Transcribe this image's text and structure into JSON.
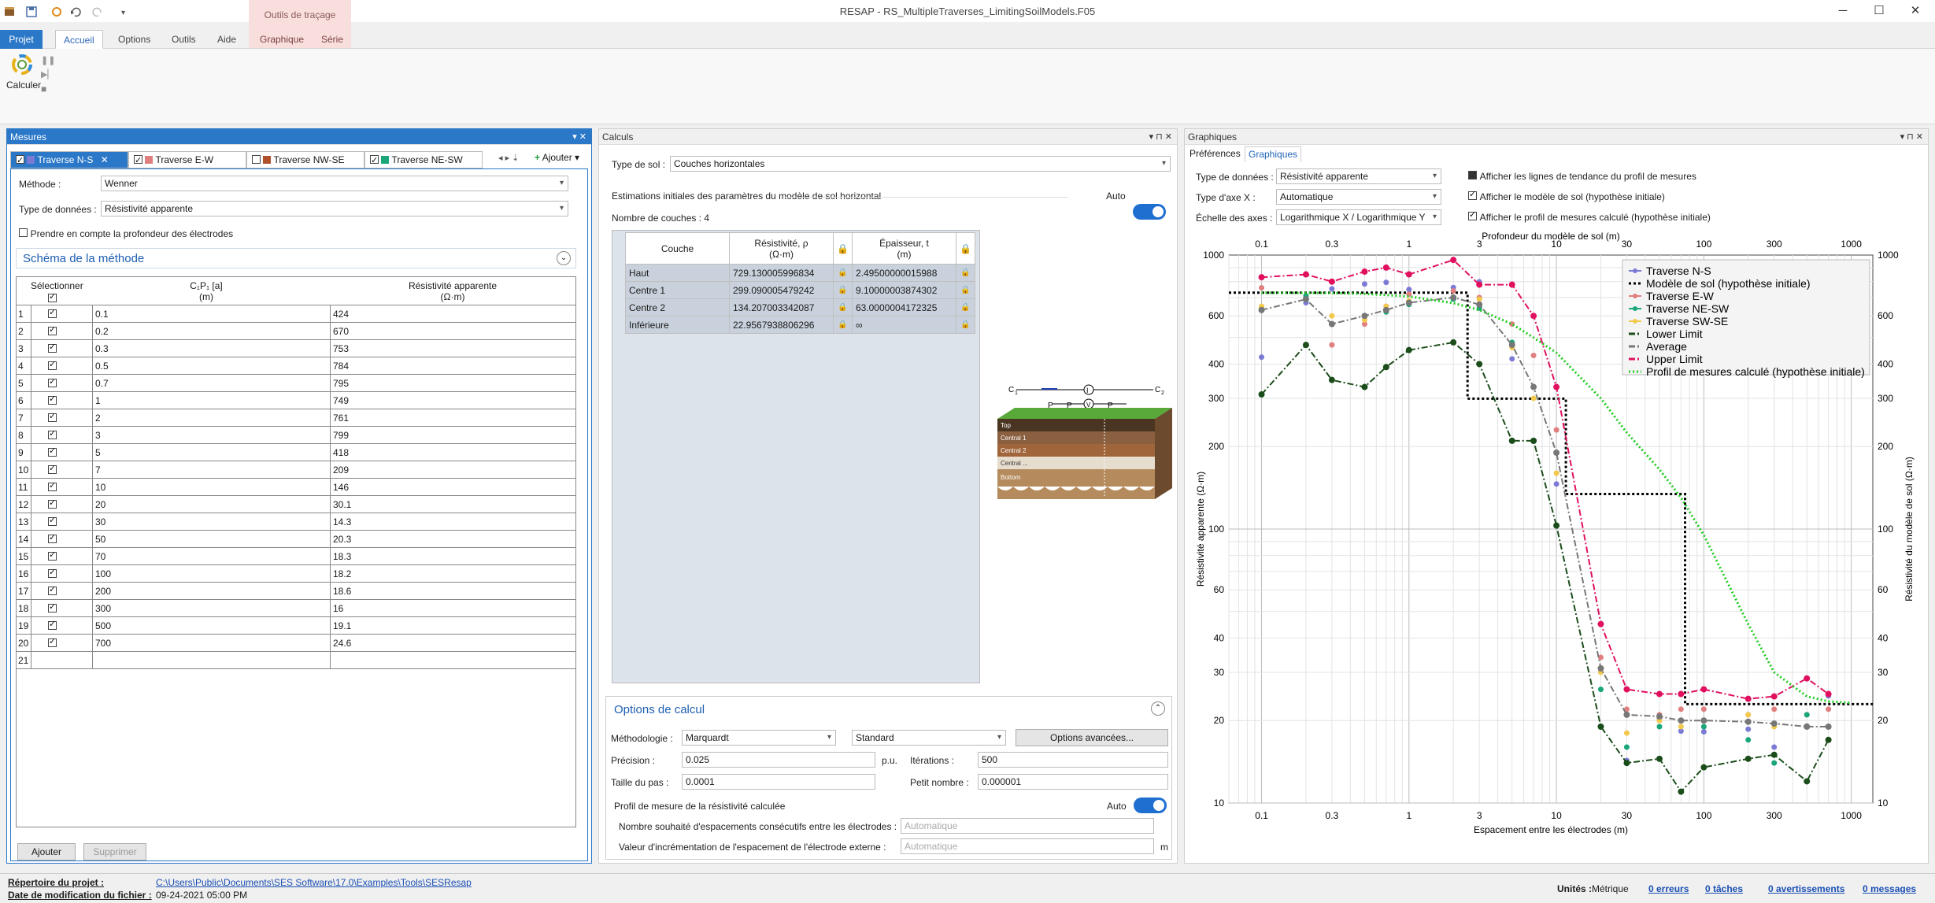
{
  "window": {
    "title": "RESAP - RS_MultipleTraverses_LimitingSoilModels.F05"
  },
  "ribbon": {
    "tabs": [
      "Projet",
      "Accueil",
      "Options",
      "Outils",
      "Aide",
      "Graphique",
      "Série"
    ],
    "context_group": "Outils de traçage",
    "calculer": "Calculer"
  },
  "mesures": {
    "title": "Mesures",
    "tabs": [
      {
        "label": "Traverse N-S",
        "checked": true,
        "color": "#7b7bd6"
      },
      {
        "label": "Traverse E-W",
        "checked": true,
        "color": "#e07f7f"
      },
      {
        "label": "Traverse NW-SE",
        "checked": false,
        "color": "#b0502b"
      },
      {
        "label": "Traverse NE-SW",
        "checked": true,
        "color": "#1aa67a"
      }
    ],
    "add_label": "Ajouter",
    "method_label": "Méthode :",
    "method_value": "Wenner",
    "datatype_label": "Type de données :",
    "datatype_value": "Résistivité apparente",
    "depth_label": "Prendre en compte la profondeur des électrodes",
    "schema_label": "Schéma de la méthode",
    "col_select": "Sélectionner",
    "col_c1p1": "C₁P₁ [a]",
    "col_c1p1_unit": "(m)",
    "col_res": "Résistivité apparente",
    "col_res_unit": "(Ω·m)",
    "rows": [
      [
        "1",
        "0.1",
        "424"
      ],
      [
        "2",
        "0.2",
        "670"
      ],
      [
        "3",
        "0.3",
        "753"
      ],
      [
        "4",
        "0.5",
        "784"
      ],
      [
        "5",
        "0.7",
        "795"
      ],
      [
        "6",
        "1",
        "749"
      ],
      [
        "7",
        "2",
        "761"
      ],
      [
        "8",
        "3",
        "799"
      ],
      [
        "9",
        "5",
        "418"
      ],
      [
        "10",
        "7",
        "209"
      ],
      [
        "11",
        "10",
        "146"
      ],
      [
        "12",
        "20",
        "30.1"
      ],
      [
        "13",
        "30",
        "14.3"
      ],
      [
        "14",
        "50",
        "20.3"
      ],
      [
        "15",
        "70",
        "18.3"
      ],
      [
        "16",
        "100",
        "18.2"
      ],
      [
        "17",
        "200",
        "18.6"
      ],
      [
        "18",
        "300",
        "16"
      ],
      [
        "19",
        "500",
        "19.1"
      ],
      [
        "20",
        "700",
        "24.6"
      ]
    ],
    "empty_row": "21",
    "btn_add": "Ajouter",
    "btn_del": "Supprimer"
  },
  "calculs": {
    "title": "Calculs",
    "soiltype_label": "Type de sol :",
    "soiltype_value": "Couches horizontales",
    "estim_label": "Estimations initiales des paramètres du modèle de sol horizontal",
    "auto": "Auto",
    "nlayers": "Nombre de couches : 4",
    "col_layer": "Couche",
    "col_rho": "Résistivité, ρ",
    "col_rho_unit": "(Ω·m)",
    "col_t": "Épaisseur, t",
    "col_t_unit": "(m)",
    "layers": [
      [
        "Haut",
        "729.130005996834",
        "2.49500000015988"
      ],
      [
        "Centre 1",
        "299.090005479242",
        "9.10000003874302"
      ],
      [
        "Centre 2",
        "134.207003342087",
        "63.0000004172325"
      ],
      [
        "Inférieure",
        "22.9567938806296",
        "∞"
      ]
    ],
    "options_title": "Options de calcul",
    "method_label": "Méthodologie :",
    "method_value": "Marquardt",
    "standard_value": "Standard",
    "adv_btn": "Options avancées...",
    "prec_label": "Précision :",
    "prec_value": "0.025",
    "pu": "p.u.",
    "iter_label": "Itérations :",
    "iter_value": "500",
    "step_label": "Taille du pas :",
    "step_value": "0.0001",
    "small_label": "Petit nombre :",
    "small_value": "0.000001",
    "profile_label": "Profil de mesure de la résistivité calculée",
    "auto2": "Auto",
    "nb_label": "Nombre souhaité d'espacements consécutifs entre les électrodes :",
    "nb_value": "Automatique",
    "inc_label": "Valeur d'incrémentation de l'espacement de l'électrode externe :",
    "inc_value": "Automatique",
    "m": "m"
  },
  "graphiques": {
    "title": "Graphiques",
    "tab_pref": "Préférences",
    "tab_graph": "Graphiques",
    "datatype_label": "Type de données :",
    "datatype_value": "Résistivité apparente",
    "xaxis_label": "Type d'axe X :",
    "xaxis_value": "Automatique",
    "scale_label": "Échelle des axes :",
    "scale_value": "Logarithmique X / Logarithmique Y",
    "opt1": "Afficher les lignes de tendance du profil de mesures",
    "opt2": "Afficher le modèle de sol (hypothèse initiale)",
    "opt3": "Afficher le profil de mesures calculé (hypothèse initiale)"
  },
  "status": {
    "dir_label": "Répertoire du projet :",
    "dir_value": "C:\\Users\\Public\\Documents\\SES Software\\17.0\\Examples\\Tools\\SESResap",
    "date_label": "Date de modification du fichier :",
    "date_value": "09-24-2021 05:00 PM",
    "units_label": "Unités :",
    "units_value": "Métrique",
    "errors": "0 erreurs",
    "tasks": "0 tâches",
    "warnings": "0 avertissements",
    "messages": "0 messages"
  },
  "chart_data": {
    "type": "scatter",
    "xscale": "log",
    "yscale": "log",
    "xlabel": "Espacement entre les électrodes (m)",
    "x2label": "Profondeur du modèle de sol (m)",
    "ylabel": "Résistivité apparente (Ω·m)",
    "y2label": "Résistivité du modèle de sol (Ω·m)",
    "xlim": [
      0.06,
      1400
    ],
    "ylim": [
      10,
      1000
    ],
    "xticks": [
      0.1,
      0.3,
      1,
      3,
      10,
      30,
      100,
      300,
      1000
    ],
    "yticks": [
      10,
      20,
      30,
      40,
      60,
      100,
      200,
      300,
      400,
      600,
      1000
    ],
    "legend_position": "top-right",
    "series": [
      {
        "name": "Traverse N-S",
        "style": "points",
        "color": "#7b7bd6",
        "x": [
          0.1,
          0.2,
          0.3,
          0.5,
          0.7,
          1,
          2,
          3,
          5,
          7,
          10,
          20,
          30,
          50,
          70,
          100,
          200,
          300,
          500,
          700
        ],
        "y": [
          424,
          670,
          753,
          784,
          795,
          749,
          761,
          799,
          418,
          209,
          146,
          30.1,
          14.3,
          20.3,
          18.3,
          18.2,
          18.6,
          16,
          19.1,
          24.6
        ]
      },
      {
        "name": "Modèle de sol (hypothèse initiale)",
        "style": "step-dotted",
        "color": "#000000",
        "x": [
          0.06,
          2.495,
          2.495,
          11.595,
          11.595,
          74.595,
          74.595,
          1400
        ],
        "y": [
          729.13,
          729.13,
          299.09,
          299.09,
          134.21,
          134.21,
          22.96,
          22.96
        ]
      },
      {
        "name": "Traverse E-W",
        "style": "points",
        "color": "#e07f7f",
        "x": [
          0.1,
          0.2,
          0.3,
          0.5,
          0.7,
          1,
          2,
          3,
          5,
          7,
          10,
          20,
          30,
          50,
          70,
          100,
          200,
          300,
          500,
          700
        ],
        "y": [
          760,
          700,
          470,
          560,
          650,
          720,
          740,
          700,
          560,
          430,
          230,
          34,
          22,
          21,
          22,
          22,
          21,
          22,
          21,
          22
        ]
      },
      {
        "name": "Traverse NE-SW",
        "style": "points",
        "color": "#1aa67a",
        "x": [
          0.1,
          0.2,
          0.3,
          0.5,
          0.7,
          1,
          2,
          3,
          5,
          7,
          10,
          20,
          30,
          50,
          70,
          100,
          200,
          300,
          500,
          700
        ],
        "y": [
          640,
          710,
          560,
          600,
          620,
          660,
          690,
          640,
          480,
          330,
          190,
          26,
          16,
          19,
          20,
          19,
          17,
          14,
          21,
          17
        ]
      },
      {
        "name": "Traverse SW-SE",
        "style": "points",
        "color": "#f2c94c",
        "x": [
          0.1,
          0.2,
          0.3,
          0.5,
          0.7,
          1,
          2,
          3,
          5,
          7,
          10,
          20,
          30,
          50,
          70,
          100,
          200,
          300,
          500,
          700
        ],
        "y": [
          650,
          690,
          600,
          580,
          650,
          680,
          700,
          690,
          460,
          300,
          160,
          30,
          18,
          20,
          19,
          20,
          21,
          19,
          19,
          19
        ]
      },
      {
        "name": "Lower Limit",
        "style": "line-dashdot",
        "color": "#1b4d1b",
        "x": [
          0.1,
          0.2,
          0.3,
          0.5,
          0.7,
          1,
          2,
          3,
          5,
          7,
          10,
          20,
          30,
          50,
          70,
          100,
          200,
          300,
          500,
          700
        ],
        "y": [
          310,
          470,
          350,
          330,
          390,
          450,
          480,
          400,
          210,
          210,
          103,
          19,
          14,
          14.5,
          11,
          13.5,
          14.5,
          15,
          12,
          17
        ]
      },
      {
        "name": "Average",
        "style": "line-dashdot",
        "color": "#777777",
        "x": [
          0.1,
          0.2,
          0.3,
          0.5,
          0.7,
          1,
          2,
          3,
          5,
          7,
          10,
          20,
          30,
          50,
          70,
          100,
          200,
          300,
          500,
          700
        ],
        "y": [
          630,
          690,
          560,
          600,
          630,
          670,
          700,
          660,
          470,
          330,
          190,
          31,
          21,
          20.7,
          20,
          20,
          19.8,
          19.5,
          19,
          19
        ]
      },
      {
        "name": "Upper Limit",
        "style": "line-dashdot",
        "color": "#e0105f",
        "x": [
          0.1,
          0.2,
          0.3,
          0.5,
          0.7,
          1,
          2,
          3,
          5,
          7,
          10,
          20,
          30,
          50,
          70,
          100,
          200,
          300,
          500,
          700
        ],
        "y": [
          830,
          850,
          800,
          870,
          900,
          850,
          960,
          780,
          780,
          600,
          330,
          45,
          26,
          25,
          25,
          26,
          24,
          24.5,
          28.5,
          25
        ]
      },
      {
        "name": "Profil de mesures calculé (hypothèse initiale)",
        "style": "line-dotted",
        "color": "#22cc22",
        "x": [
          0.1,
          0.2,
          0.3,
          0.5,
          0.7,
          1,
          2,
          3,
          5,
          7,
          10,
          20,
          30,
          50,
          70,
          100,
          200,
          300,
          500,
          700,
          1000
        ],
        "y": [
          729,
          728,
          727,
          722,
          715,
          706,
          668,
          630,
          560,
          500,
          440,
          300,
          225,
          165,
          130,
          95,
          45,
          30,
          24.5,
          23.5,
          23.2
        ]
      }
    ]
  }
}
